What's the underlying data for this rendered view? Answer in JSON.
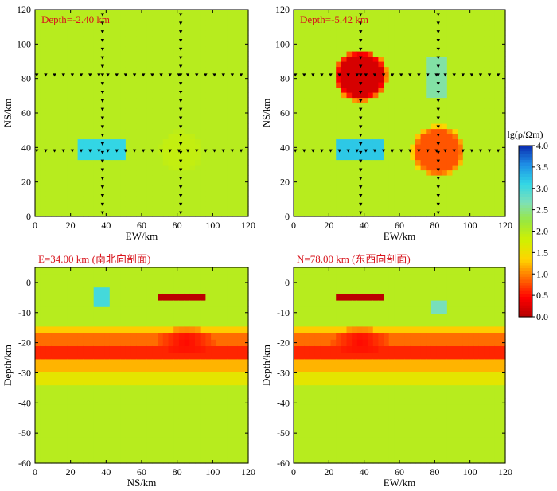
{
  "figure": {
    "colorbar": {
      "label": "lg(ρ/Ωm)",
      "ticks": [
        "4.0",
        "3.5",
        "3.0",
        "2.5",
        "2.0",
        "1.5",
        "1.0",
        "0.5",
        "0.0"
      ],
      "range": [
        0,
        4
      ],
      "colormap": [
        "#b40000",
        "#ff0000",
        "#ff6a00",
        "#ffd400",
        "#d2f000",
        "#9be83c",
        "#7ee0b8",
        "#31d6e6",
        "#1e8fe6",
        "#0b2bb0"
      ]
    },
    "background_color": "#9ee0a0"
  },
  "chart_data": [
    {
      "type": "heatmap",
      "panel": "top-left",
      "annotation": "Depth=-2.40 km",
      "xlabel": "EW/km",
      "ylabel": "NS/km",
      "xlim": [
        0,
        120
      ],
      "ylim": [
        0,
        120
      ],
      "xticks": [
        "0",
        "20",
        "40",
        "60",
        "80",
        "100",
        "120"
      ],
      "yticks": [
        "0",
        "20",
        "40",
        "60",
        "80",
        "100",
        "120"
      ],
      "background_value": 2.0,
      "anomalies": [
        {
          "kind": "rect",
          "x": [
            25,
            52
          ],
          "y": [
            32,
            44
          ],
          "value": 3.1
        },
        {
          "kind": "circle",
          "cx": 82,
          "cy": 38,
          "r": 12,
          "value": 1.9
        }
      ],
      "survey_lines_x": [
        38,
        82
      ],
      "survey_lines_y": [
        82,
        38
      ]
    },
    {
      "type": "heatmap",
      "panel": "top-right",
      "annotation": "Depth=-5.42 km",
      "xlabel": "EW/km",
      "ylabel": "NS/km",
      "xlim": [
        0,
        120
      ],
      "ylim": [
        0,
        120
      ],
      "xticks": [
        "0",
        "20",
        "40",
        "60",
        "80",
        "100",
        "120"
      ],
      "yticks": [
        "0",
        "20",
        "40",
        "60",
        "80",
        "100",
        "120"
      ],
      "background_value": 2.0,
      "anomalies": [
        {
          "kind": "circle",
          "cx": 38,
          "cy": 82,
          "r": 15,
          "value": 0.2
        },
        {
          "kind": "circle",
          "cx": 82,
          "cy": 38,
          "r": 15,
          "value": 0.8
        },
        {
          "kind": "rect",
          "x": [
            25,
            52
          ],
          "y": [
            32,
            44
          ],
          "value": 3.2
        },
        {
          "kind": "rect",
          "x": [
            75,
            88
          ],
          "y": [
            68,
            94
          ],
          "value": 2.6
        }
      ],
      "survey_lines_x": [
        38,
        82
      ],
      "survey_lines_y": [
        82,
        38
      ]
    },
    {
      "type": "heatmap",
      "panel": "bottom-left",
      "annotation": "E=34.00 km (南北向剖面)",
      "xlabel": "NS/km",
      "ylabel": "Depth/km",
      "xlim": [
        0,
        120
      ],
      "ylim": [
        -60,
        5
      ],
      "xticks": [
        "0",
        "20",
        "40",
        "60",
        "80",
        "100",
        "120"
      ],
      "yticks": [
        "0",
        "-10",
        "-20",
        "-30",
        "-40",
        "-50",
        "-60"
      ],
      "layers": [
        {
          "depth": [
            -14,
            -17
          ],
          "value": 1.3
        },
        {
          "depth": [
            -17,
            -20
          ],
          "value": 0.9
        },
        {
          "depth": [
            -20,
            -26
          ],
          "value": 0.6
        },
        {
          "depth": [
            -26,
            -30
          ],
          "value": 1.2
        },
        {
          "depth": [
            -30,
            -35
          ],
          "value": 1.6
        }
      ],
      "anomalies": [
        {
          "kind": "rect",
          "x": [
            33,
            43
          ],
          "y": [
            -9,
            -1
          ],
          "value": 3.0
        },
        {
          "kind": "rect",
          "x": [
            70,
            97
          ],
          "y": [
            -6,
            -4
          ],
          "value": 0.05
        },
        {
          "kind": "ellipse",
          "cx": 85,
          "cy": -19,
          "rx": 16,
          "ry": 4,
          "value": 0.4
        }
      ]
    },
    {
      "type": "heatmap",
      "panel": "bottom-right",
      "annotation": "N=78.00 km (东西向剖面)",
      "xlabel": "EW/km",
      "ylabel": "Depth/km",
      "xlim": [
        0,
        120
      ],
      "ylim": [
        -60,
        5
      ],
      "xticks": [
        "0",
        "20",
        "40",
        "60",
        "80",
        "100",
        "120"
      ],
      "yticks": [
        "0",
        "-10",
        "-20",
        "-30",
        "-40",
        "-50",
        "-60"
      ],
      "layers": [
        {
          "depth": [
            -14,
            -17
          ],
          "value": 1.3
        },
        {
          "depth": [
            -17,
            -20
          ],
          "value": 0.9
        },
        {
          "depth": [
            -20,
            -26
          ],
          "value": 0.6
        },
        {
          "depth": [
            -26,
            -30
          ],
          "value": 1.2
        },
        {
          "depth": [
            -30,
            -35
          ],
          "value": 1.6
        }
      ],
      "anomalies": [
        {
          "kind": "rect",
          "x": [
            25,
            52
          ],
          "y": [
            -6,
            -4
          ],
          "value": 0.05
        },
        {
          "kind": "rect",
          "x": [
            78,
            88
          ],
          "y": [
            -11,
            -5
          ],
          "value": 2.7
        },
        {
          "kind": "ellipse",
          "cx": 38,
          "cy": -19,
          "rx": 16,
          "ry": 4,
          "value": 0.4
        }
      ]
    }
  ]
}
